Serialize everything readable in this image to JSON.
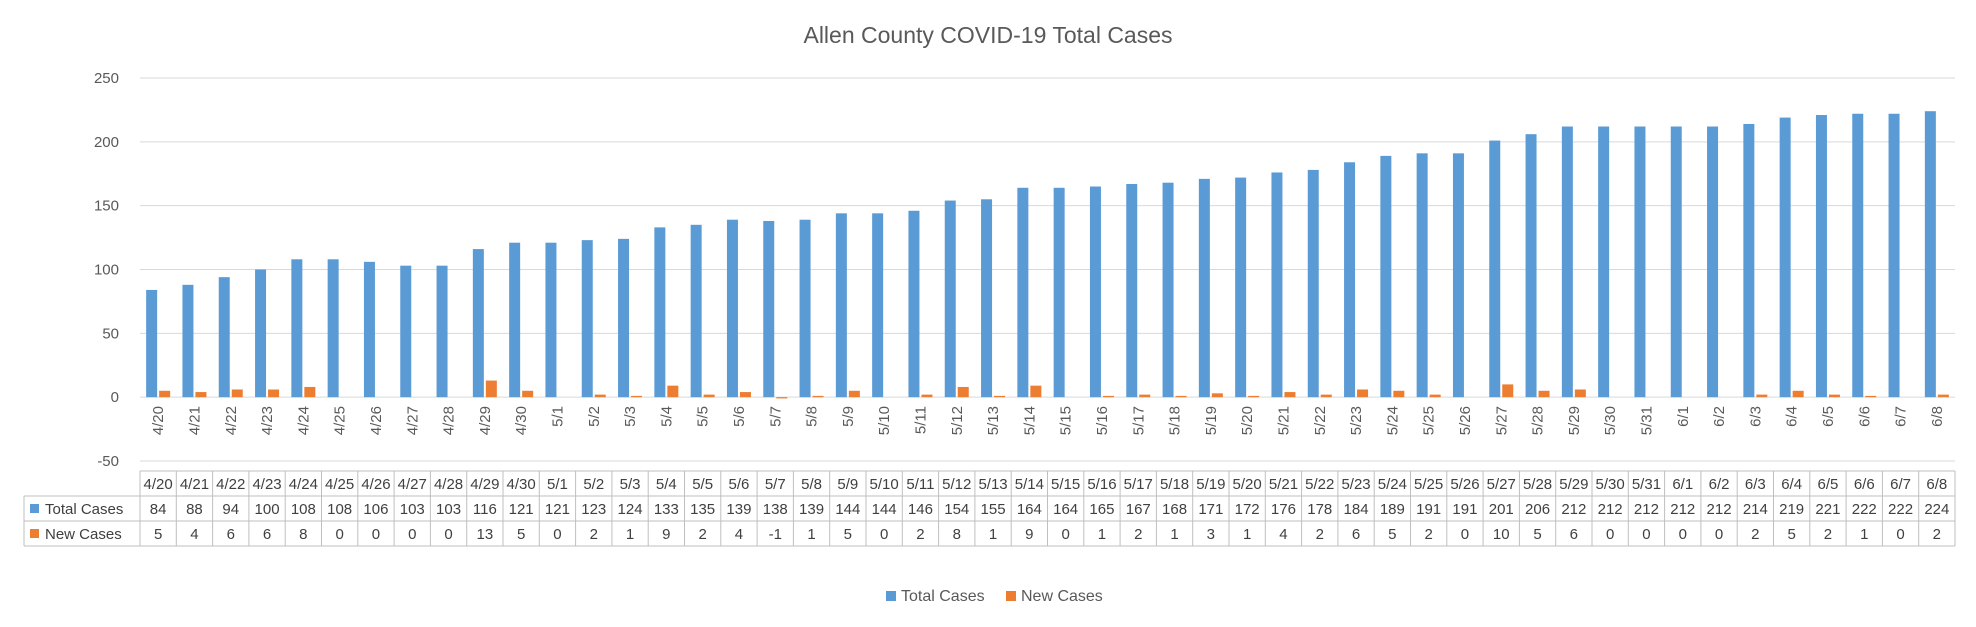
{
  "chart_data": {
    "type": "bar",
    "title": "Allen County COVID-19 Total Cases",
    "xlabel": "",
    "ylabel": "",
    "ylim": [
      -50,
      250
    ],
    "yticks": [
      -50,
      0,
      50,
      100,
      150,
      200,
      250
    ],
    "grid": true,
    "legend": "bottom",
    "categories": [
      "4/20",
      "4/21",
      "4/22",
      "4/23",
      "4/24",
      "4/25",
      "4/26",
      "4/27",
      "4/28",
      "4/29",
      "4/30",
      "5/1",
      "5/2",
      "5/3",
      "5/4",
      "5/5",
      "5/6",
      "5/7",
      "5/8",
      "5/9",
      "5/10",
      "5/11",
      "5/12",
      "5/13",
      "5/14",
      "5/15",
      "5/16",
      "5/17",
      "5/18",
      "5/19",
      "5/20",
      "5/21",
      "5/22",
      "5/23",
      "5/24",
      "5/25",
      "5/26",
      "5/27",
      "5/28",
      "5/29",
      "5/30",
      "5/31",
      "6/1",
      "6/2",
      "6/3",
      "6/4",
      "6/5",
      "6/6",
      "6/7",
      "6/8"
    ],
    "series": [
      {
        "name": "Total Cases",
        "color": "#5B9BD5",
        "values": [
          84,
          88,
          94,
          100,
          108,
          108,
          106,
          103,
          103,
          116,
          121,
          121,
          123,
          124,
          133,
          135,
          139,
          138,
          139,
          144,
          144,
          146,
          154,
          155,
          164,
          164,
          165,
          167,
          168,
          171,
          172,
          176,
          178,
          184,
          189,
          191,
          191,
          201,
          206,
          212,
          212,
          212,
          212,
          212,
          214,
          219,
          221,
          222,
          222,
          224
        ]
      },
      {
        "name": "New Cases",
        "color": "#ED7D31",
        "values": [
          5,
          4,
          6,
          6,
          8,
          0,
          0,
          0,
          0,
          13,
          5,
          0,
          2,
          1,
          9,
          2,
          4,
          -1,
          1,
          5,
          0,
          2,
          8,
          1,
          9,
          0,
          1,
          2,
          1,
          3,
          1,
          4,
          2,
          6,
          5,
          2,
          0,
          10,
          5,
          6,
          0,
          0,
          0,
          0,
          2,
          5,
          2,
          1,
          0,
          2
        ]
      }
    ],
    "data_table": true
  }
}
